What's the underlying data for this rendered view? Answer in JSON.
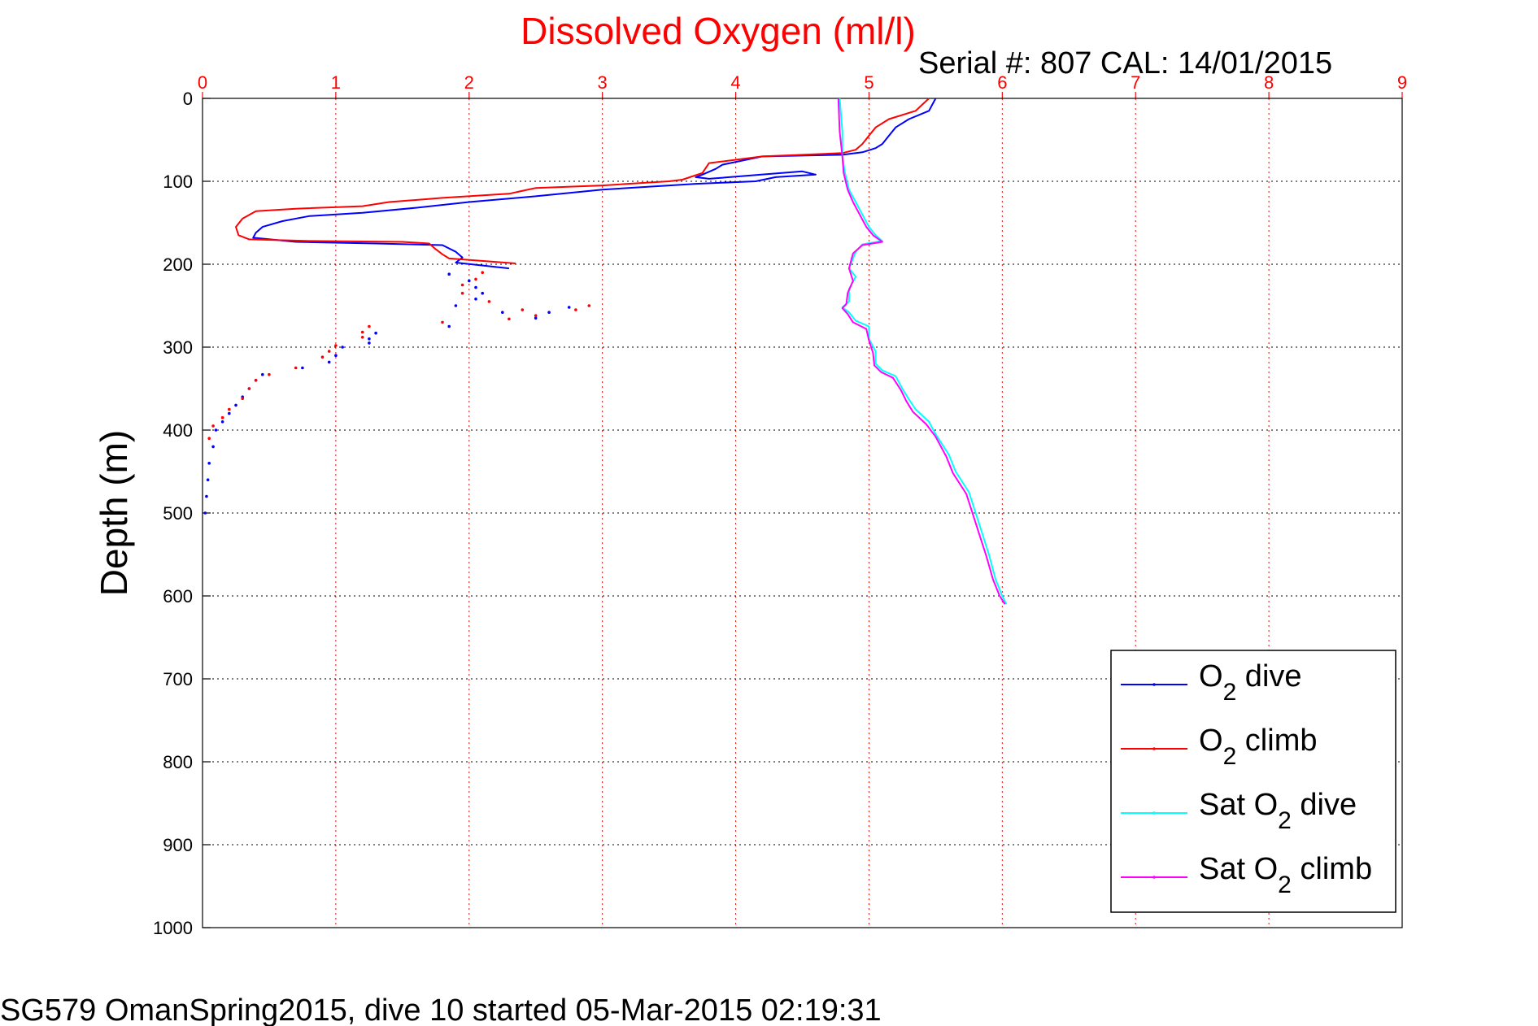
{
  "chart_data": {
    "type": "line",
    "title": "Dissolved Oxygen (ml/l)",
    "subtitle": "Serial #: 807  CAL: 14/01/2015",
    "xlabel": "",
    "ylabel": "Depth (m)",
    "xlim": [
      0,
      9
    ],
    "ylim": [
      0,
      1000
    ],
    "y_reversed": true,
    "x_axis_position": "top",
    "x_ticks": [
      "0",
      "1",
      "2",
      "3",
      "4",
      "5",
      "6",
      "7",
      "8",
      "9"
    ],
    "y_ticks": [
      "0",
      "100",
      "200",
      "300",
      "400",
      "500",
      "600",
      "700",
      "800",
      "900",
      "1000"
    ],
    "grid": true,
    "legend_position": "lower-right",
    "footer": "SG579 OmanSpring2015, dive 10 started 05-Mar-2015 02:19:31",
    "colors": {
      "title": "#ff0000",
      "x_ticks": "#ff0000",
      "grid": "#ff0000",
      "text": "#000000"
    },
    "legend": [
      {
        "base": "O",
        "sub": "2",
        "prefix": "",
        "suffix": " dive",
        "series": "O2 dive"
      },
      {
        "base": "O",
        "sub": "2",
        "prefix": "",
        "suffix": " climb",
        "series": "O2 climb"
      },
      {
        "base": "O",
        "sub": "2",
        "prefix": "Sat ",
        "suffix": " dive",
        "series": "Sat O2 dive"
      },
      {
        "base": "O",
        "sub": "2",
        "prefix": "Sat ",
        "suffix": " climb",
        "series": "Sat O2 climb"
      }
    ],
    "series": [
      {
        "name": "O2 dive",
        "color": "#0000ff",
        "mode": "line",
        "points": [
          [
            5.5,
            0
          ],
          [
            5.45,
            15
          ],
          [
            5.3,
            25
          ],
          [
            5.2,
            35
          ],
          [
            5.15,
            45
          ],
          [
            5.1,
            55
          ],
          [
            5.05,
            60
          ],
          [
            4.95,
            65
          ],
          [
            4.8,
            68
          ],
          [
            4.2,
            70
          ],
          [
            3.9,
            80
          ],
          [
            3.85,
            85
          ],
          [
            3.75,
            92
          ],
          [
            3.7,
            95
          ],
          [
            3.8,
            97
          ],
          [
            4.5,
            88
          ],
          [
            4.6,
            92
          ],
          [
            4.3,
            95
          ],
          [
            4.15,
            100
          ],
          [
            3.7,
            103
          ],
          [
            3.0,
            110
          ],
          [
            2.5,
            118
          ],
          [
            2.0,
            125
          ],
          [
            1.6,
            132
          ],
          [
            1.2,
            138
          ],
          [
            0.8,
            142
          ],
          [
            0.6,
            148
          ],
          [
            0.45,
            155
          ],
          [
            0.4,
            162
          ],
          [
            0.38,
            168
          ],
          [
            0.7,
            173
          ],
          [
            1.3,
            175
          ],
          [
            1.8,
            177
          ],
          [
            1.9,
            185
          ],
          [
            1.95,
            192
          ],
          [
            1.9,
            198
          ],
          [
            2.3,
            205
          ]
        ]
      },
      {
        "name": "O2 dive scatter",
        "color": "#0000ff",
        "mode": "dots",
        "points": [
          [
            1.85,
            212
          ],
          [
            2.0,
            220
          ],
          [
            2.05,
            228
          ],
          [
            2.1,
            235
          ],
          [
            2.05,
            242
          ],
          [
            1.9,
            250
          ],
          [
            2.25,
            258
          ],
          [
            2.5,
            265
          ],
          [
            2.6,
            258
          ],
          [
            2.75,
            252
          ],
          [
            1.85,
            275
          ],
          [
            1.3,
            283
          ],
          [
            1.25,
            290
          ],
          [
            1.25,
            295
          ],
          [
            1.05,
            300
          ],
          [
            1.0,
            310
          ],
          [
            0.95,
            318
          ],
          [
            0.75,
            325
          ],
          [
            0.45,
            333
          ],
          [
            0.4,
            340
          ],
          [
            0.35,
            350
          ],
          [
            0.3,
            360
          ],
          [
            0.25,
            370
          ],
          [
            0.2,
            380
          ],
          [
            0.15,
            390
          ],
          [
            0.1,
            400
          ],
          [
            0.08,
            420
          ],
          [
            0.05,
            440
          ],
          [
            0.04,
            460
          ],
          [
            0.03,
            480
          ],
          [
            0.02,
            500
          ]
        ]
      },
      {
        "name": "O2 climb",
        "color": "#ff0000",
        "mode": "line",
        "points": [
          [
            5.45,
            0
          ],
          [
            5.35,
            15
          ],
          [
            5.15,
            25
          ],
          [
            5.05,
            35
          ],
          [
            5.0,
            45
          ],
          [
            4.95,
            55
          ],
          [
            4.9,
            62
          ],
          [
            4.8,
            66
          ],
          [
            4.2,
            70
          ],
          [
            3.8,
            78
          ],
          [
            3.75,
            90
          ],
          [
            3.6,
            98
          ],
          [
            3.5,
            100
          ],
          [
            3.0,
            105
          ],
          [
            2.5,
            108
          ],
          [
            2.3,
            115
          ],
          [
            1.8,
            120
          ],
          [
            1.4,
            125
          ],
          [
            1.2,
            130
          ],
          [
            0.7,
            133
          ],
          [
            0.4,
            136
          ],
          [
            0.3,
            145
          ],
          [
            0.25,
            155
          ],
          [
            0.27,
            165
          ],
          [
            0.35,
            170
          ],
          [
            0.8,
            172
          ],
          [
            1.5,
            173
          ],
          [
            1.7,
            175
          ],
          [
            1.75,
            182
          ],
          [
            1.8,
            188
          ],
          [
            1.85,
            193
          ],
          [
            2.35,
            199
          ]
        ]
      },
      {
        "name": "O2 climb scatter",
        "color": "#ff0000",
        "mode": "dots",
        "points": [
          [
            2.1,
            210
          ],
          [
            2.05,
            218
          ],
          [
            1.95,
            225
          ],
          [
            1.95,
            235
          ],
          [
            2.15,
            245
          ],
          [
            2.4,
            255
          ],
          [
            2.9,
            250
          ],
          [
            2.8,
            255
          ],
          [
            2.5,
            262
          ],
          [
            2.3,
            266
          ],
          [
            1.8,
            270
          ],
          [
            1.25,
            275
          ],
          [
            1.2,
            282
          ],
          [
            1.2,
            288
          ],
          [
            1.0,
            298
          ],
          [
            0.95,
            305
          ],
          [
            0.9,
            312
          ],
          [
            0.7,
            325
          ],
          [
            0.5,
            333
          ],
          [
            0.4,
            340
          ],
          [
            0.35,
            350
          ],
          [
            0.3,
            362
          ],
          [
            0.2,
            375
          ],
          [
            0.15,
            385
          ],
          [
            0.08,
            395
          ],
          [
            0.05,
            410
          ]
        ]
      },
      {
        "name": "Sat O2 dive",
        "color": "#00ffff",
        "mode": "line",
        "points": [
          [
            4.78,
            0
          ],
          [
            4.8,
            40
          ],
          [
            4.8,
            70
          ],
          [
            4.82,
            90
          ],
          [
            4.85,
            110
          ],
          [
            4.9,
            125
          ],
          [
            4.95,
            140
          ],
          [
            5.0,
            155
          ],
          [
            5.05,
            165
          ],
          [
            5.1,
            172
          ],
          [
            4.95,
            176
          ],
          [
            4.9,
            185
          ],
          [
            4.85,
            205
          ],
          [
            4.9,
            215
          ],
          [
            4.85,
            230
          ],
          [
            4.85,
            245
          ],
          [
            4.8,
            252
          ],
          [
            4.85,
            258
          ],
          [
            4.9,
            268
          ],
          [
            5.0,
            275
          ],
          [
            5.0,
            290
          ],
          [
            5.05,
            305
          ],
          [
            5.05,
            320
          ],
          [
            5.1,
            328
          ],
          [
            5.2,
            335
          ],
          [
            5.25,
            350
          ],
          [
            5.3,
            363
          ],
          [
            5.35,
            375
          ],
          [
            5.45,
            390
          ],
          [
            5.5,
            405
          ],
          [
            5.6,
            430
          ],
          [
            5.65,
            450
          ],
          [
            5.75,
            475
          ],
          [
            5.8,
            500
          ],
          [
            5.85,
            525
          ],
          [
            5.9,
            550
          ],
          [
            5.95,
            580
          ],
          [
            6.0,
            600
          ],
          [
            6.03,
            610
          ]
        ]
      },
      {
        "name": "Sat O2 climb",
        "color": "#ff00ff",
        "mode": "line",
        "points": [
          [
            4.77,
            0
          ],
          [
            4.78,
            40
          ],
          [
            4.8,
            70
          ],
          [
            4.81,
            90
          ],
          [
            4.84,
            110
          ],
          [
            4.88,
            125
          ],
          [
            4.93,
            140
          ],
          [
            4.98,
            155
          ],
          [
            5.03,
            165
          ],
          [
            5.1,
            173
          ],
          [
            4.95,
            177
          ],
          [
            4.88,
            187
          ],
          [
            4.85,
            205
          ],
          [
            4.88,
            220
          ],
          [
            4.84,
            235
          ],
          [
            4.83,
            248
          ],
          [
            4.8,
            253
          ],
          [
            4.84,
            260
          ],
          [
            4.88,
            270
          ],
          [
            4.98,
            278
          ],
          [
            5.0,
            292
          ],
          [
            5.03,
            307
          ],
          [
            5.04,
            322
          ],
          [
            5.09,
            330
          ],
          [
            5.18,
            337
          ],
          [
            5.24,
            352
          ],
          [
            5.28,
            365
          ],
          [
            5.33,
            378
          ],
          [
            5.43,
            393
          ],
          [
            5.5,
            408
          ],
          [
            5.58,
            432
          ],
          [
            5.63,
            452
          ],
          [
            5.73,
            477
          ],
          [
            5.78,
            502
          ],
          [
            5.83,
            527
          ],
          [
            5.88,
            552
          ],
          [
            5.93,
            580
          ],
          [
            5.98,
            600
          ],
          [
            6.02,
            610
          ]
        ]
      }
    ]
  }
}
